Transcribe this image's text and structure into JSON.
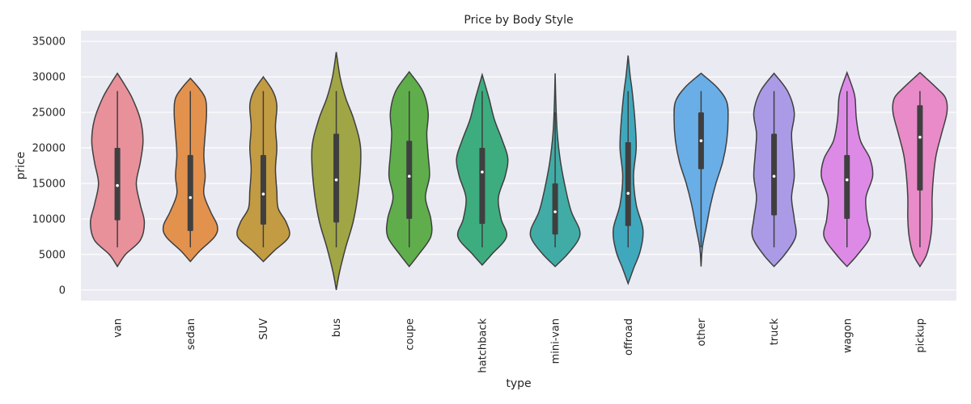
{
  "chart_data": {
    "type": "violin",
    "title": "Price by Body Style",
    "xlabel": "type",
    "ylabel": "price",
    "ylim": [
      -1500,
      36500
    ],
    "yticks": [
      0,
      5000,
      10000,
      15000,
      20000,
      25000,
      30000,
      35000
    ],
    "grid": true,
    "categories": [
      "van",
      "sedan",
      "SUV",
      "bus",
      "coupe",
      "hatchback",
      "mini-van",
      "offroad",
      "other",
      "truck",
      "wagon",
      "pickup"
    ],
    "colors": [
      "#e8919b",
      "#e3924e",
      "#c39b42",
      "#a0a645",
      "#5fae4b",
      "#3dad7f",
      "#41aca6",
      "#40a8bd",
      "#6aaee7",
      "#ab9be7",
      "#dd8ae7",
      "#e98bc8"
    ],
    "violins": [
      {
        "name": "van",
        "min": 6000,
        "q1": 9800,
        "median": 14700,
        "q3": 20000,
        "max": 28000,
        "profile": [
          [
            3300,
            0
          ],
          [
            5000,
            0.3
          ],
          [
            7000,
            0.85
          ],
          [
            9500,
            1
          ],
          [
            12000,
            0.85
          ],
          [
            15000,
            0.7
          ],
          [
            18000,
            0.85
          ],
          [
            21000,
            0.95
          ],
          [
            24000,
            0.85
          ],
          [
            27000,
            0.55
          ],
          [
            29000,
            0.25
          ],
          [
            30500,
            0
          ]
        ]
      },
      {
        "name": "sedan",
        "min": 6000,
        "q1": 8300,
        "median": 13000,
        "q3": 19000,
        "max": 28000,
        "profile": [
          [
            4000,
            0
          ],
          [
            5500,
            0.35
          ],
          [
            7500,
            0.9
          ],
          [
            9000,
            1
          ],
          [
            11000,
            0.75
          ],
          [
            13500,
            0.5
          ],
          [
            16000,
            0.55
          ],
          [
            19000,
            0.5
          ],
          [
            22000,
            0.55
          ],
          [
            25000,
            0.6
          ],
          [
            27000,
            0.55
          ],
          [
            28500,
            0.3
          ],
          [
            29800,
            0
          ]
        ]
      },
      {
        "name": "SUV",
        "min": 6000,
        "q1": 9200,
        "median": 13500,
        "q3": 19000,
        "max": 28000,
        "profile": [
          [
            4000,
            0
          ],
          [
            5500,
            0.4
          ],
          [
            7500,
            0.95
          ],
          [
            9500,
            0.85
          ],
          [
            11500,
            0.55
          ],
          [
            14000,
            0.5
          ],
          [
            17000,
            0.45
          ],
          [
            20000,
            0.5
          ],
          [
            23000,
            0.45
          ],
          [
            26000,
            0.5
          ],
          [
            28000,
            0.35
          ],
          [
            30000,
            0
          ]
        ]
      },
      {
        "name": "bus",
        "min": 6000,
        "q1": 9500,
        "median": 15500,
        "q3": 22000,
        "max": 28000,
        "profile": [
          [
            0,
            0
          ],
          [
            2500,
            0.12
          ],
          [
            6000,
            0.35
          ],
          [
            10000,
            0.65
          ],
          [
            15000,
            0.85
          ],
          [
            20000,
            0.9
          ],
          [
            24000,
            0.65
          ],
          [
            27000,
            0.35
          ],
          [
            30000,
            0.14
          ],
          [
            33500,
            0
          ]
        ]
      },
      {
        "name": "coupe",
        "min": 6000,
        "q1": 10000,
        "median": 16000,
        "q3": 21000,
        "max": 28000,
        "profile": [
          [
            3300,
            0
          ],
          [
            5000,
            0.35
          ],
          [
            7500,
            0.8
          ],
          [
            10000,
            0.8
          ],
          [
            13000,
            0.6
          ],
          [
            16000,
            0.75
          ],
          [
            19000,
            0.7
          ],
          [
            22000,
            0.65
          ],
          [
            25000,
            0.7
          ],
          [
            28000,
            0.5
          ],
          [
            30700,
            0
          ]
        ]
      },
      {
        "name": "hatchback",
        "min": 6000,
        "q1": 9300,
        "median": 16600,
        "q3": 20000,
        "max": 28000,
        "profile": [
          [
            3500,
            0
          ],
          [
            5000,
            0.35
          ],
          [
            7500,
            0.9
          ],
          [
            10000,
            0.7
          ],
          [
            13000,
            0.6
          ],
          [
            16000,
            0.85
          ],
          [
            18500,
            0.95
          ],
          [
            21000,
            0.75
          ],
          [
            24000,
            0.45
          ],
          [
            27000,
            0.25
          ],
          [
            30300,
            0
          ]
        ]
      },
      {
        "name": "mini-van",
        "min": 6000,
        "q1": 7800,
        "median": 11000,
        "q3": 15000,
        "max": 25000,
        "profile": [
          [
            3300,
            0
          ],
          [
            5000,
            0.45
          ],
          [
            7000,
            0.85
          ],
          [
            8500,
            0.9
          ],
          [
            11000,
            0.6
          ],
          [
            14000,
            0.4
          ],
          [
            18000,
            0.2
          ],
          [
            22000,
            0.08
          ],
          [
            26000,
            0.03
          ],
          [
            30500,
            0
          ]
        ]
      },
      {
        "name": "offroad",
        "min": 6000,
        "q1": 9000,
        "median": 13600,
        "q3": 20800,
        "max": 28000,
        "profile": [
          [
            900,
            0
          ],
          [
            3000,
            0.2
          ],
          [
            5500,
            0.45
          ],
          [
            8500,
            0.55
          ],
          [
            12000,
            0.3
          ],
          [
            16000,
            0.2
          ],
          [
            20000,
            0.3
          ],
          [
            24000,
            0.25
          ],
          [
            28000,
            0.15
          ],
          [
            30000,
            0.08
          ],
          [
            33000,
            0
          ]
        ]
      },
      {
        "name": "other",
        "min": 6000,
        "q1": 17000,
        "median": 21000,
        "q3": 25000,
        "max": 28000,
        "profile": [
          [
            3300,
            0
          ],
          [
            6000,
            0.05
          ],
          [
            9000,
            0.2
          ],
          [
            12000,
            0.35
          ],
          [
            15000,
            0.55
          ],
          [
            18000,
            0.8
          ],
          [
            21000,
            0.95
          ],
          [
            24000,
            1
          ],
          [
            26500,
            0.95
          ],
          [
            28500,
            0.6
          ],
          [
            30500,
            0
          ]
        ]
      },
      {
        "name": "truck",
        "min": 6000,
        "q1": 10500,
        "median": 16000,
        "q3": 22000,
        "max": 28000,
        "profile": [
          [
            3300,
            0
          ],
          [
            5000,
            0.4
          ],
          [
            7500,
            0.8
          ],
          [
            10000,
            0.75
          ],
          [
            13000,
            0.65
          ],
          [
            16000,
            0.75
          ],
          [
            19000,
            0.7
          ],
          [
            22000,
            0.65
          ],
          [
            25000,
            0.75
          ],
          [
            28000,
            0.5
          ],
          [
            30500,
            0
          ]
        ]
      },
      {
        "name": "wagon",
        "min": 6000,
        "q1": 10000,
        "median": 15500,
        "q3": 19000,
        "max": 28000,
        "profile": [
          [
            3300,
            0
          ],
          [
            5000,
            0.4
          ],
          [
            7500,
            0.85
          ],
          [
            10000,
            0.75
          ],
          [
            13000,
            0.7
          ],
          [
            16000,
            0.95
          ],
          [
            18500,
            0.85
          ],
          [
            21000,
            0.5
          ],
          [
            24000,
            0.35
          ],
          [
            27000,
            0.3
          ],
          [
            28500,
            0.2
          ],
          [
            30600,
            0
          ]
        ]
      },
      {
        "name": "pickup",
        "min": 6000,
        "q1": 14000,
        "median": 21500,
        "q3": 26000,
        "max": 28000,
        "profile": [
          [
            3300,
            0
          ],
          [
            5000,
            0.25
          ],
          [
            7500,
            0.4
          ],
          [
            10000,
            0.45
          ],
          [
            13000,
            0.45
          ],
          [
            16000,
            0.5
          ],
          [
            19000,
            0.6
          ],
          [
            22000,
            0.8
          ],
          [
            25000,
            1
          ],
          [
            27000,
            0.95
          ],
          [
            28500,
            0.6
          ],
          [
            30600,
            0
          ]
        ]
      }
    ]
  }
}
